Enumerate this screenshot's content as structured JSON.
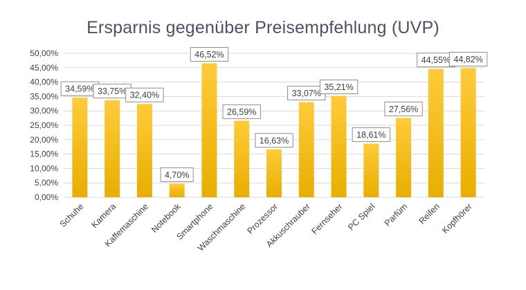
{
  "chart_data": {
    "type": "bar",
    "title": "Ersparnis gegenüber Preisempfehlung (UVP)",
    "xlabel": "",
    "ylabel": "",
    "ylim": [
      0,
      50
    ],
    "ytick_step": 5,
    "ytick_labels": [
      "0,00%",
      "5,00%",
      "10,00%",
      "15,00%",
      "20,00%",
      "25,00%",
      "30,00%",
      "35,00%",
      "40,00%",
      "45,00%",
      "50,00%"
    ],
    "categories": [
      "Schuhe",
      "Kamera",
      "Kaffemaschine",
      "Notebook",
      "Smartphone",
      "Waschmaschine",
      "Prozessor",
      "Akkuschrauber",
      "Fernseher",
      "PC Spiel",
      "Parfüm",
      "Reifen",
      "Kopfhörer"
    ],
    "values": [
      34.59,
      33.75,
      32.4,
      4.7,
      46.52,
      26.59,
      16.63,
      33.07,
      35.21,
      18.61,
      27.56,
      44.55,
      44.82
    ],
    "data_labels": [
      "34,59%",
      "33,75%",
      "32,40%",
      "4,70%",
      "46,52%",
      "26,59%",
      "16,63%",
      "33,07%",
      "35,21%",
      "18,61%",
      "27,56%",
      "44,55%",
      "44,82%"
    ],
    "grid": true,
    "legend": "none",
    "colors": {
      "bar_top": "#FFCB3A",
      "bar_bottom": "#E8AE00",
      "grid": "#d9d9d9",
      "label_border": "#8c8c8c",
      "text": "#404040",
      "title": "#4a5263"
    }
  }
}
